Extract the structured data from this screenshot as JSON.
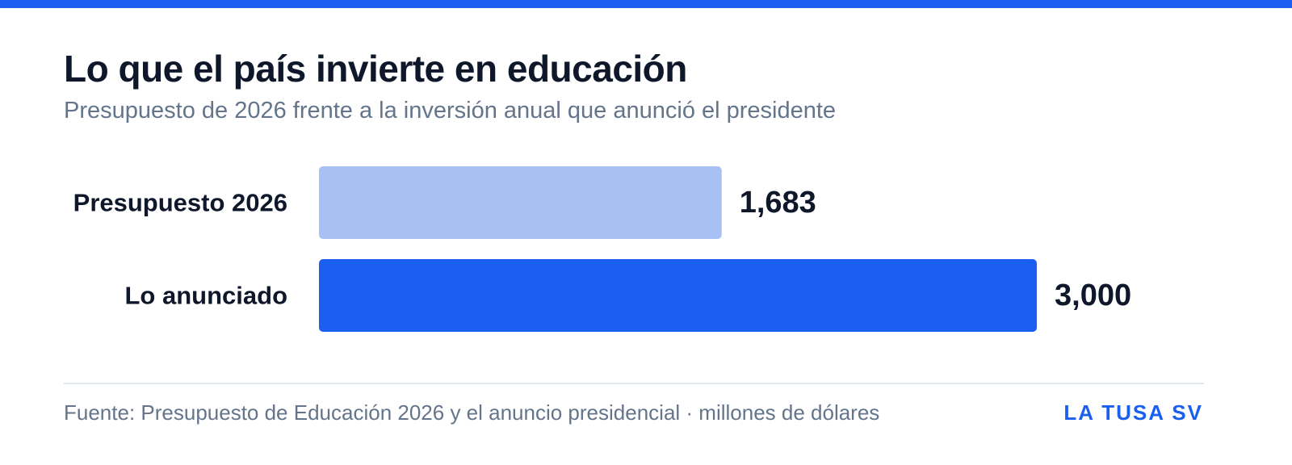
{
  "colors": {
    "accent": "#1a5ff0",
    "accent_light": "#a8c1f4",
    "text_dark": "#0f172a",
    "text_muted": "#64748b",
    "divider": "#e2e8f0"
  },
  "header": {
    "title": "Lo que el país invierte en educación",
    "subtitle": "Presupuesto de 2026 frente a la inversión anual que anunció el presidente"
  },
  "footer": {
    "source": "Fuente: Presupuesto de Educación 2026 y el anuncio presidencial · millones de dólares",
    "brand": "LA TUSA SV"
  },
  "chart_data": {
    "type": "bar",
    "orientation": "horizontal",
    "title": "Lo que el país invierte en educación",
    "subtitle": "Presupuesto de 2026 frente a la inversión anual que anunció el presidente",
    "xlabel": "",
    "ylabel": "",
    "unit": "millones de dólares",
    "categories": [
      "Presupuesto 2026",
      "Lo anunciado"
    ],
    "values": [
      1683,
      3000
    ],
    "value_labels": [
      "1,683",
      "3,000"
    ],
    "bar_colors": [
      "#a8c1f4",
      "#1a5ff0"
    ],
    "xlim": [
      0,
      3000
    ],
    "grid": false,
    "legend": "none"
  }
}
